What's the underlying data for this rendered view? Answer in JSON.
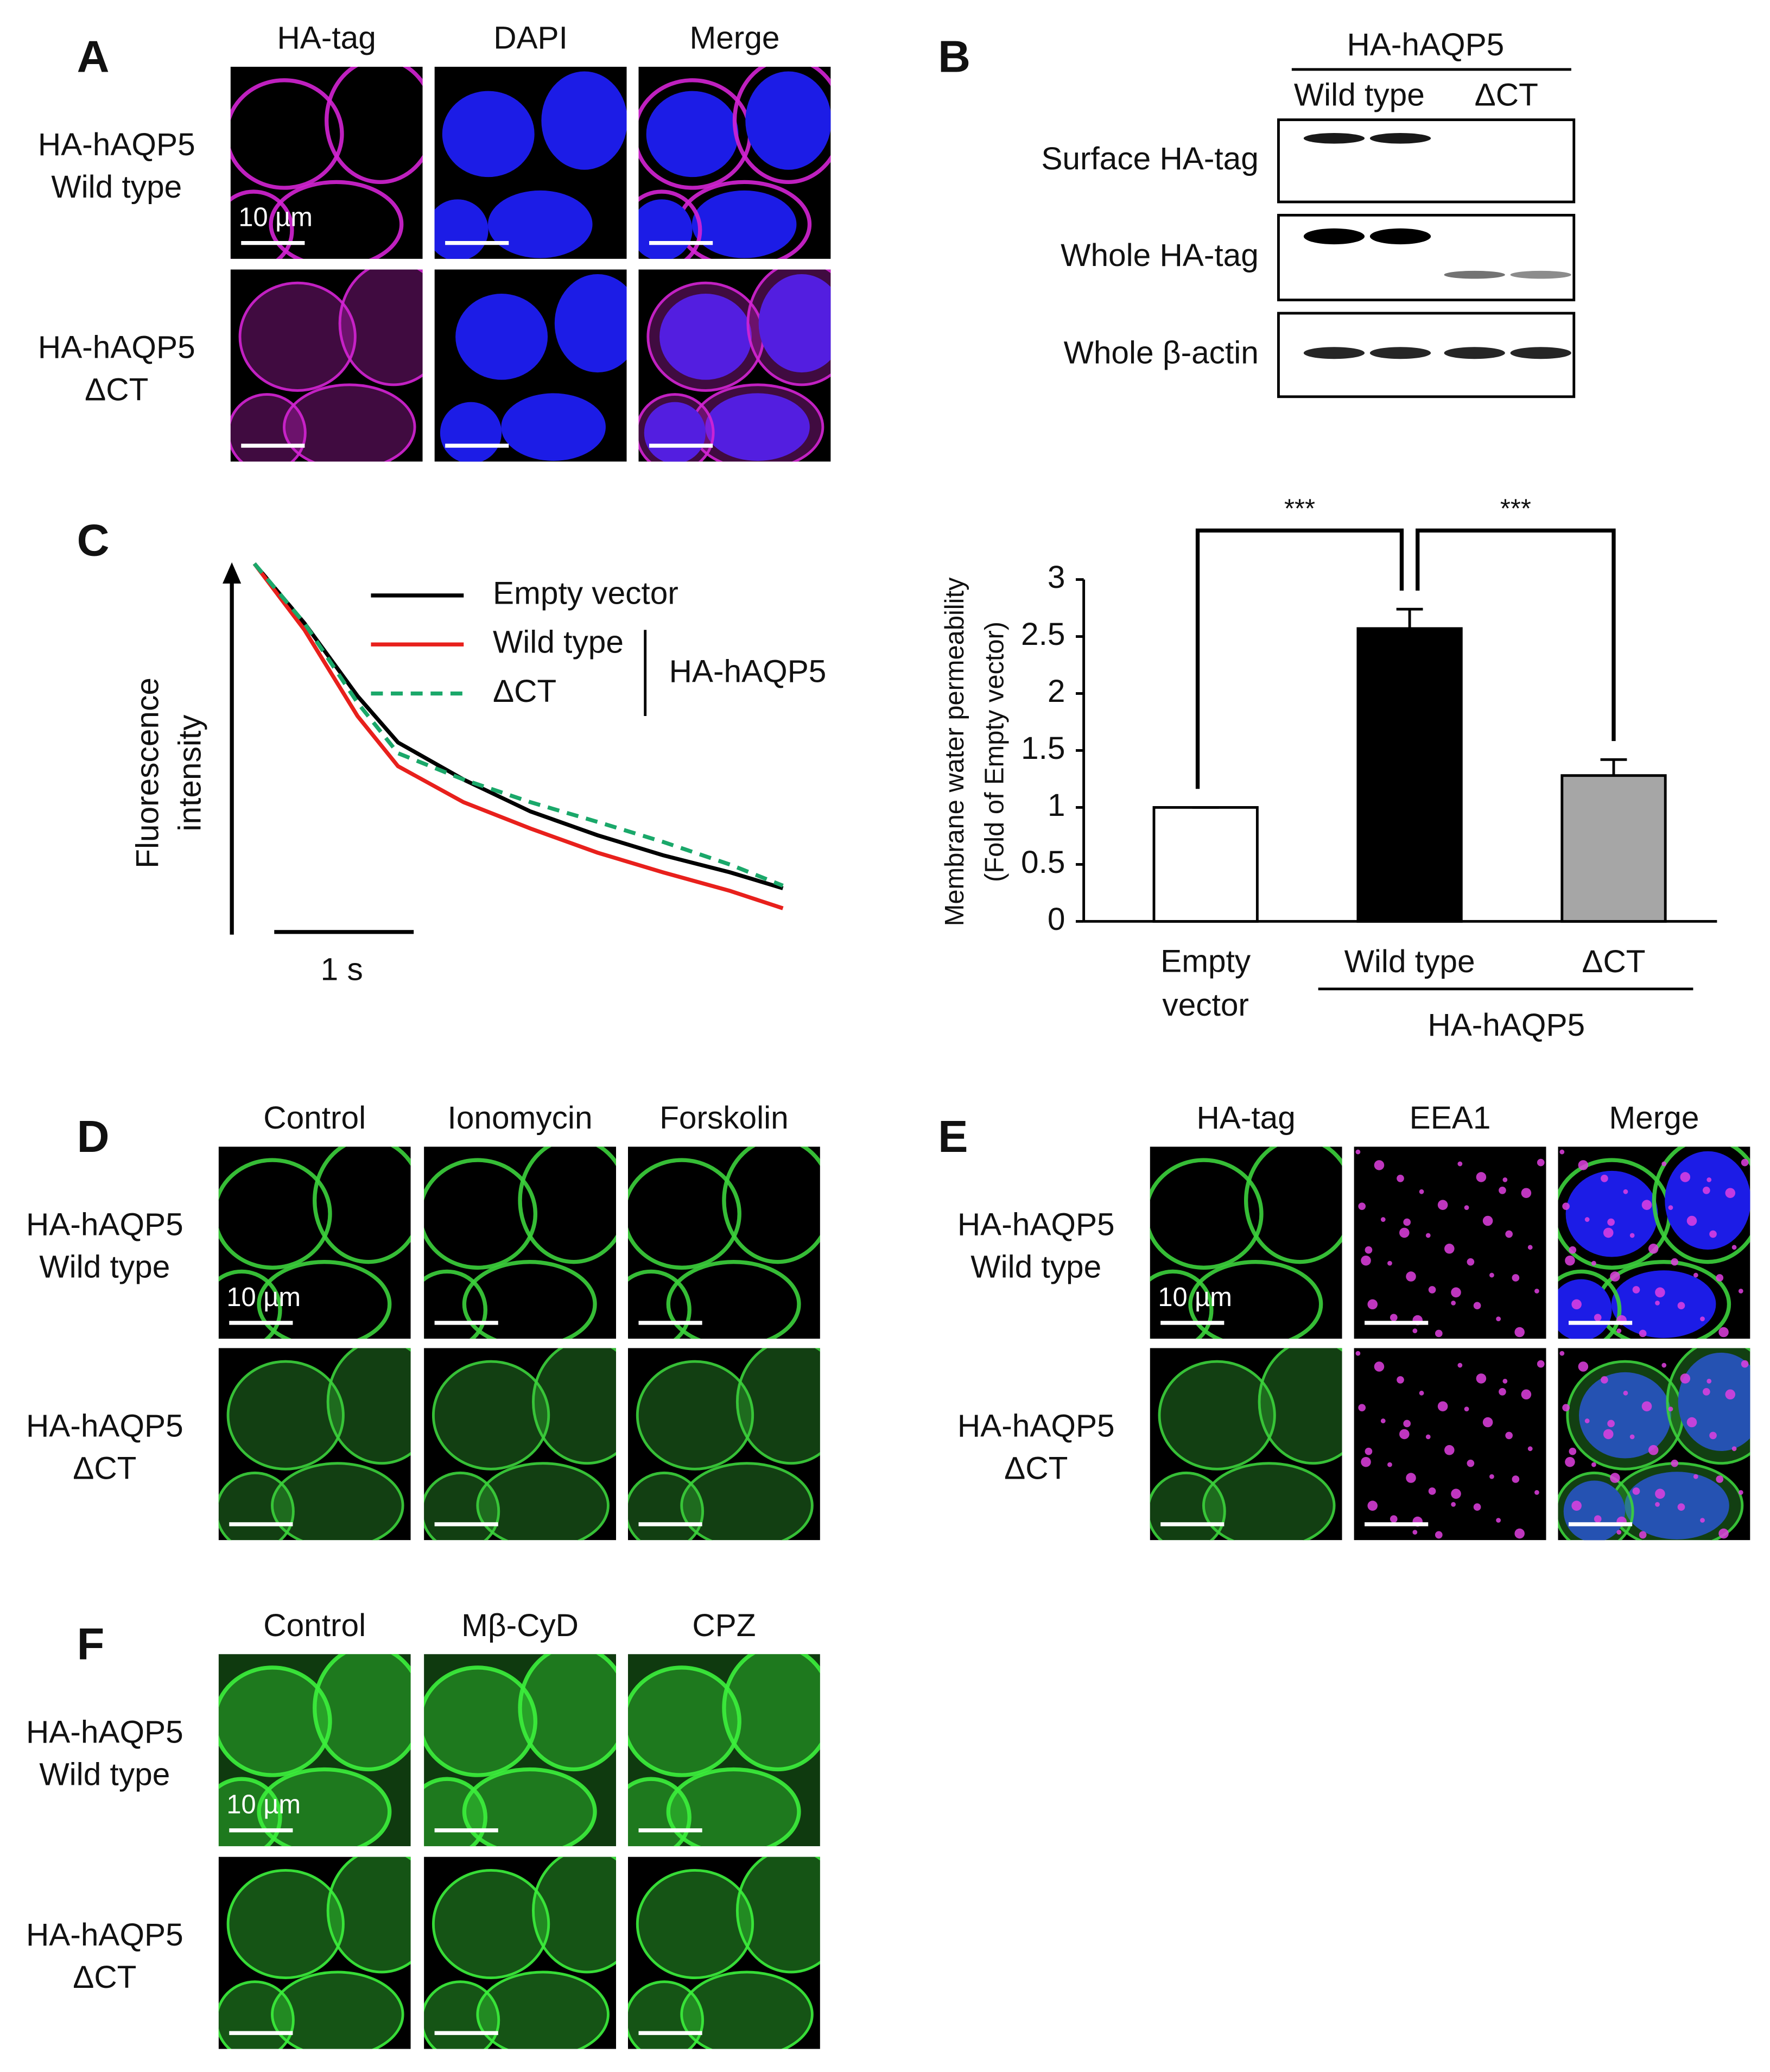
{
  "panels": {
    "A": {
      "letter": "A",
      "columns": [
        "HA-tag",
        "DAPI",
        "Merge"
      ],
      "rows": [
        [
          "HA-hAQP5",
          "Wild type"
        ],
        [
          "HA-hAQP5",
          "ΔCT"
        ]
      ],
      "scale_label": "10 µm"
    },
    "B": {
      "letter": "B",
      "group": "HA-hAQP5",
      "columns": [
        "Wild type",
        "ΔCT"
      ],
      "rows": [
        "Surface HA-tag",
        "Whole HA-tag",
        "Whole β-actin"
      ]
    },
    "C": {
      "letter": "C"
    },
    "D": {
      "letter": "D",
      "columns": [
        "Control",
        "Ionomycin",
        "Forskolin"
      ],
      "rows": [
        [
          "HA-hAQP5",
          "Wild type"
        ],
        [
          "HA-hAQP5",
          "ΔCT"
        ]
      ],
      "scale_label": "10 µm"
    },
    "E": {
      "letter": "E",
      "columns": [
        "HA-tag",
        "EEA1",
        "Merge"
      ],
      "rows": [
        [
          "HA-hAQP5",
          "Wild type"
        ],
        [
          "HA-hAQP5",
          "ΔCT"
        ]
      ],
      "scale_label": "10 µm"
    },
    "F": {
      "letter": "F",
      "columns": [
        "Control",
        "Mβ-CyD",
        "CPZ"
      ],
      "rows": [
        [
          "HA-hAQP5",
          "Wild type"
        ],
        [
          "HA-hAQP5",
          "ΔCT"
        ]
      ],
      "scale_label": "10 µm"
    }
  },
  "chart_data": [
    {
      "type": "line",
      "ylabel": [
        "Fluorescence",
        "intensity"
      ],
      "scale_bar_label": "1 s",
      "scale_bar_seconds": 1,
      "x": [
        0,
        0.36,
        0.74,
        1.03,
        1.5,
        1.98,
        2.46,
        2.93,
        3.41,
        3.79
      ],
      "xlim": [
        0,
        3.8
      ],
      "ylim": [
        0,
        100
      ],
      "legend_group": "HA-hAQP5",
      "series": [
        {
          "name": "Empty vector",
          "color": "#000000",
          "dash": false,
          "values": [
            100,
            83.9,
            64.3,
            51.8,
            41.8,
            33.2,
            26.8,
            21.4,
            16.8,
            12.5
          ]
        },
        {
          "name": "Wild type",
          "color": "#e8201c",
          "dash": false,
          "values": [
            100,
            82.1,
            58.9,
            45.4,
            35.7,
            28.6,
            22.1,
            16.8,
            11.8,
            7.1
          ]
        },
        {
          "name": "ΔCT",
          "color": "#1aa86a",
          "dash": true,
          "values": [
            100,
            83.9,
            62.5,
            48.9,
            41.8,
            35.7,
            30.4,
            25,
            18.9,
            13.2
          ]
        }
      ]
    },
    {
      "type": "bar",
      "ylabel": [
        "Membrane water permeability",
        "(Fold of Empty vector)"
      ],
      "categories": [
        "Empty vector",
        "Wild type",
        "ΔCT"
      ],
      "values": [
        1,
        2.57,
        1.28
      ],
      "errors": [
        0,
        0.17,
        0.14
      ],
      "colors": [
        "#ffffff",
        "#000000",
        "#a6a6a6"
      ],
      "ylim": [
        0,
        3
      ],
      "yticks": [
        0,
        0.5,
        1,
        1.5,
        2,
        2.5,
        3
      ],
      "group": "HA-hAQP5",
      "significance": [
        "***",
        "***"
      ]
    }
  ]
}
